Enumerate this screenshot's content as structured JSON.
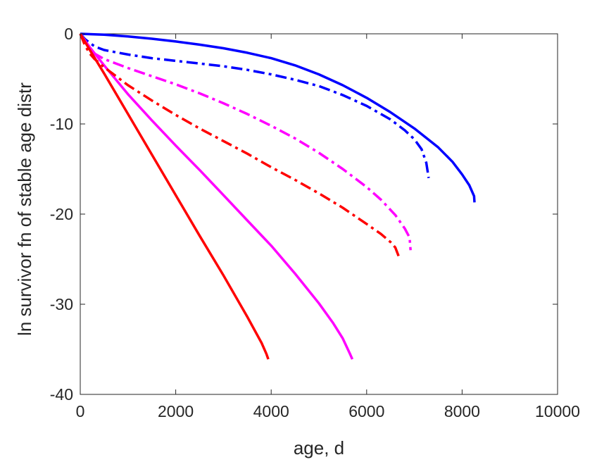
{
  "chart_data": {
    "type": "line",
    "title": "",
    "xlabel": "age, d",
    "ylabel": "ln survivor fn of stable age distr",
    "xlim": [
      0,
      10000
    ],
    "ylim": [
      -40,
      0
    ],
    "xticks": [
      0,
      2000,
      4000,
      6000,
      8000,
      10000
    ],
    "yticks": [
      -40,
      -30,
      -20,
      -10,
      0
    ],
    "xtick_labels": [
      "0",
      "2000",
      "4000",
      "6000",
      "8000",
      "10000"
    ],
    "ytick_labels": [
      "-40",
      "-30",
      "-20",
      "-10",
      "0"
    ],
    "grid": false,
    "legend": "none",
    "series": [
      {
        "color": "#0000ff",
        "style": "solid",
        "x": [
          0,
          500,
          1000,
          1500,
          2000,
          2500,
          3000,
          3500,
          4000,
          4500,
          5000,
          5500,
          6000,
          6500,
          7000,
          7500,
          7800,
          8000,
          8150,
          8250,
          8260
        ],
        "y": [
          0,
          -0.1,
          -0.3,
          -0.55,
          -0.85,
          -1.2,
          -1.6,
          -2.1,
          -2.7,
          -3.5,
          -4.5,
          -5.7,
          -7.1,
          -8.7,
          -10.5,
          -12.6,
          -14.2,
          -15.6,
          -16.8,
          -18.0,
          -18.7
        ]
      },
      {
        "color": "#0000ff",
        "style": "dashdot",
        "x": [
          0,
          100,
          200,
          300,
          500,
          800,
          1000,
          1500,
          2000,
          2500,
          3000,
          3500,
          4000,
          4500,
          5000,
          5500,
          6000,
          6500,
          6800,
          7000,
          7150,
          7250,
          7300
        ],
        "y": [
          0,
          -0.6,
          -1.0,
          -1.4,
          -1.8,
          -2.1,
          -2.3,
          -2.7,
          -3.0,
          -3.3,
          -3.6,
          -4.0,
          -4.5,
          -5.1,
          -5.8,
          -6.8,
          -8.0,
          -9.5,
          -10.7,
          -11.7,
          -12.8,
          -14.3,
          -16.0
        ]
      },
      {
        "color": "#ff00ff",
        "style": "solid",
        "x": [
          0,
          200,
          500,
          1000,
          1500,
          2000,
          2500,
          3000,
          3500,
          4000,
          4500,
          5000,
          5300,
          5500,
          5650,
          5700
        ],
        "y": [
          0,
          -1.5,
          -3.5,
          -6.7,
          -9.6,
          -12.4,
          -15.1,
          -17.9,
          -20.7,
          -23.5,
          -26.6,
          -29.9,
          -32.1,
          -33.8,
          -35.5,
          -36.1
        ]
      },
      {
        "color": "#ff00ff",
        "style": "dashdot",
        "x": [
          0,
          100,
          200,
          300,
          500,
          1000,
          1500,
          2000,
          2500,
          3000,
          3500,
          4000,
          4500,
          5000,
          5500,
          6000,
          6300,
          6600,
          6800,
          6900,
          6920
        ],
        "y": [
          0,
          -0.9,
          -1.6,
          -2.2,
          -2.8,
          -3.8,
          -4.7,
          -5.6,
          -6.6,
          -7.7,
          -8.9,
          -10.2,
          -11.6,
          -13.2,
          -15.0,
          -17.0,
          -18.4,
          -20.1,
          -21.6,
          -22.6,
          -24.0
        ]
      },
      {
        "color": "#ff0000",
        "style": "solid",
        "x": [
          0,
          200,
          500,
          1000,
          1500,
          2000,
          2500,
          3000,
          3500,
          3800,
          3900,
          3940
        ],
        "y": [
          0,
          -1.8,
          -4.4,
          -8.9,
          -13.4,
          -17.9,
          -22.4,
          -26.8,
          -31.4,
          -34.3,
          -35.5,
          -36.1
        ]
      },
      {
        "color": "#ff0000",
        "style": "dashdot",
        "x": [
          0,
          100,
          200,
          300,
          500,
          1000,
          1500,
          2000,
          2500,
          3000,
          3500,
          4000,
          4500,
          5000,
          5500,
          6000,
          6300,
          6500,
          6600,
          6680
        ],
        "y": [
          0,
          -1.3,
          -2.2,
          -2.8,
          -3.7,
          -5.7,
          -7.4,
          -9.0,
          -10.5,
          -11.9,
          -13.3,
          -14.8,
          -16.2,
          -17.7,
          -19.3,
          -21.1,
          -22.2,
          -23.1,
          -23.7,
          -24.8
        ]
      }
    ]
  }
}
